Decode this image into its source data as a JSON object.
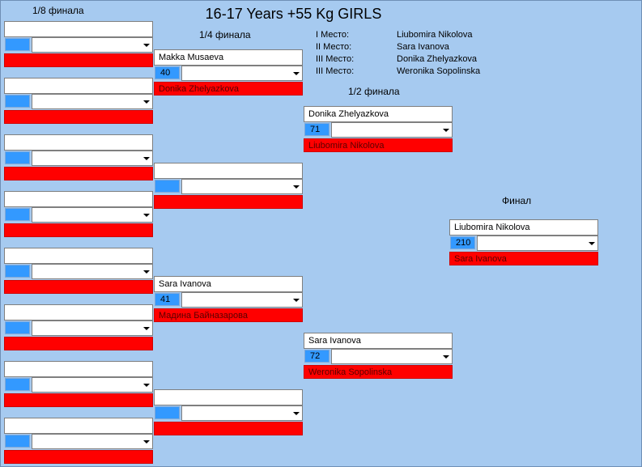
{
  "title": "16-17 Years +55 Kg GIRLS",
  "round_labels": {
    "r16": "1/8 финала",
    "qf": "1/4 финала",
    "sf": "1/2 финала",
    "final": "Финал"
  },
  "places": [
    {
      "label": "I Место:",
      "name": "Liubomira Nikolova"
    },
    {
      "label": "II Место:",
      "name": "Sara Ivanova"
    },
    {
      "label": "III Место:",
      "name": "Donika Zhelyazkova"
    },
    {
      "label": "III Место:",
      "name": "Weronika Sopolinska"
    }
  ],
  "matches": {
    "r16": [
      {
        "top": "",
        "num": "",
        "bottom": ""
      },
      {
        "top": "",
        "num": "",
        "bottom": ""
      },
      {
        "top": "",
        "num": "",
        "bottom": ""
      },
      {
        "top": "",
        "num": "",
        "bottom": ""
      },
      {
        "top": "",
        "num": "",
        "bottom": ""
      },
      {
        "top": "",
        "num": "",
        "bottom": ""
      },
      {
        "top": "",
        "num": "",
        "bottom": ""
      },
      {
        "top": "",
        "num": "",
        "bottom": ""
      }
    ],
    "qf": [
      {
        "top": "Makka Musaeva",
        "num": "40",
        "bottom": "Donika Zhelyazkova"
      },
      {
        "top": "",
        "num": "",
        "bottom": ""
      },
      {
        "top": "Sara Ivanova",
        "num": "41",
        "bottom": "Мадина Байназарова"
      },
      {
        "top": "",
        "num": "",
        "bottom": ""
      }
    ],
    "sf": [
      {
        "top": "Donika Zhelyazkova",
        "num": "71",
        "bottom": "Liubomira Nikolova"
      },
      {
        "top": "Sara Ivanova",
        "num": "72",
        "bottom": "Weronika Sopolinska"
      }
    ],
    "final": [
      {
        "top": "Liubomira Nikolova",
        "num": "210",
        "bottom": "Sara Ivanova"
      }
    ]
  }
}
